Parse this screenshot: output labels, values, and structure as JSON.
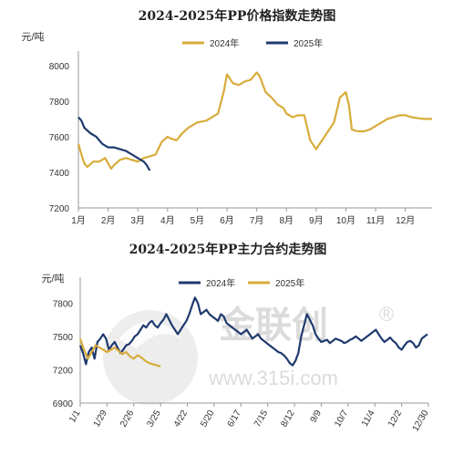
{
  "chart_data": [
    {
      "type": "line",
      "title": "2024-2025年PP价格指数走势图",
      "ylabel": "元/吨",
      "xlabel": "",
      "ylim": [
        7200,
        8050
      ],
      "yticks": [
        7200,
        7400,
        7600,
        7800,
        8000
      ],
      "x_categories": [
        "1月",
        "2月",
        "3月",
        "4月",
        "5月",
        "6月",
        "7月",
        "8月",
        "9月",
        "10月",
        "11月",
        "12月"
      ],
      "legend_position": "top",
      "grid": false,
      "series": [
        {
          "name": "2024年",
          "color": "#d8ac3a",
          "x": [
            1.0,
            1.1,
            1.2,
            1.3,
            1.5,
            1.7,
            1.9,
            2.1,
            2.2,
            2.4,
            2.6,
            2.8,
            3.0,
            3.2,
            3.4,
            3.6,
            3.8,
            4.0,
            4.1,
            4.3,
            4.5,
            4.7,
            5.0,
            5.3,
            5.5,
            5.7,
            5.9,
            6.0,
            6.2,
            6.4,
            6.6,
            6.8,
            7.0,
            7.1,
            7.3,
            7.5,
            7.7,
            7.9,
            8.0,
            8.2,
            8.4,
            8.6,
            8.8,
            9.0,
            9.2,
            9.4,
            9.6,
            9.8,
            10.0,
            10.1,
            10.2,
            10.4,
            10.6,
            10.8,
            11.0,
            11.2,
            11.4,
            11.6,
            11.8,
            12.0,
            12.2,
            12.4,
            12.6,
            12.8,
            12.9
          ],
          "values": [
            7560,
            7500,
            7450,
            7430,
            7460,
            7460,
            7480,
            7420,
            7440,
            7470,
            7480,
            7470,
            7460,
            7480,
            7490,
            7500,
            7570,
            7600,
            7590,
            7580,
            7620,
            7650,
            7680,
            7690,
            7710,
            7730,
            7860,
            7950,
            7900,
            7890,
            7910,
            7920,
            7960,
            7940,
            7850,
            7820,
            7780,
            7760,
            7730,
            7710,
            7720,
            7720,
            7580,
            7530,
            7580,
            7630,
            7680,
            7820,
            7850,
            7780,
            7640,
            7630,
            7630,
            7640,
            7660,
            7680,
            7700,
            7710,
            7720,
            7720,
            7710,
            7705,
            7700,
            7700,
            7700
          ]
        },
        {
          "name": "2025年",
          "color": "#1f3a6e",
          "x": [
            1.0,
            1.1,
            1.2,
            1.4,
            1.6,
            1.8,
            2.0,
            2.2,
            2.4,
            2.6,
            2.8,
            3.0,
            3.1,
            3.2,
            3.3,
            3.4
          ],
          "values": [
            7710,
            7690,
            7650,
            7620,
            7600,
            7560,
            7540,
            7540,
            7530,
            7520,
            7500,
            7480,
            7470,
            7460,
            7440,
            7410
          ]
        }
      ]
    },
    {
      "type": "line",
      "title": "2024-2025年PP主力合约走势图",
      "ylabel": "元/吨",
      "xlabel": "",
      "ylim": [
        6900,
        8000
      ],
      "yticks": [
        6900,
        7200,
        7500,
        7800
      ],
      "x_tick_labels": [
        "1/1",
        "1/29",
        "2/26",
        "3/25",
        "4/22",
        "5/20",
        "6/17",
        "7/15",
        "8/12",
        "9/9",
        "10/7",
        "11/4",
        "12/2",
        "12/30"
      ],
      "legend_position": "top",
      "grid": false,
      "series": [
        {
          "name": "2024年",
          "color": "#1f3a6e",
          "x": [
            0,
            3,
            6,
            9,
            12,
            15,
            18,
            21,
            24,
            27,
            30,
            33,
            36,
            39,
            42,
            45,
            48,
            51,
            54,
            57,
            60,
            63,
            66,
            69,
            72,
            75,
            78,
            81,
            84,
            87,
            90,
            93,
            96,
            99,
            102,
            105,
            108,
            111,
            114,
            117,
            120,
            123,
            126,
            129,
            132,
            135,
            138,
            141,
            144,
            147,
            150,
            153,
            156,
            159,
            162,
            165,
            168,
            171,
            174,
            177,
            180,
            183,
            186,
            189,
            192,
            195,
            198,
            201,
            204,
            207,
            210,
            213,
            216,
            219,
            222,
            225,
            228,
            231,
            234,
            237,
            240,
            243,
            246,
            249,
            252,
            255,
            258,
            261,
            264,
            267,
            270,
            273,
            276,
            279,
            282,
            285,
            288,
            291,
            294,
            297,
            300,
            303,
            306,
            309,
            312,
            315,
            318,
            321,
            324,
            327,
            330,
            333,
            336,
            339,
            342,
            345,
            348,
            351,
            354,
            357,
            360,
            363
          ],
          "values": [
            7420,
            7350,
            7250,
            7360,
            7400,
            7300,
            7450,
            7480,
            7520,
            7480,
            7380,
            7420,
            7450,
            7400,
            7350,
            7380,
            7420,
            7430,
            7460,
            7500,
            7520,
            7560,
            7600,
            7580,
            7620,
            7640,
            7600,
            7580,
            7620,
            7650,
            7700,
            7650,
            7600,
            7560,
            7520,
            7560,
            7600,
            7640,
            7700,
            7780,
            7850,
            7800,
            7700,
            7720,
            7740,
            7700,
            7680,
            7660,
            7640,
            7700,
            7680,
            7620,
            7600,
            7580,
            7560,
            7540,
            7520,
            7540,
            7560,
            7520,
            7480,
            7500,
            7520,
            7480,
            7460,
            7440,
            7420,
            7400,
            7380,
            7360,
            7350,
            7330,
            7300,
            7260,
            7240,
            7280,
            7350,
            7500,
            7600,
            7700,
            7650,
            7600,
            7520,
            7480,
            7450,
            7460,
            7470,
            7440,
            7460,
            7480,
            7470,
            7460,
            7440,
            7450,
            7470,
            7480,
            7500,
            7480,
            7460,
            7480,
            7500,
            7520,
            7540,
            7560,
            7520,
            7480,
            7450,
            7470,
            7490,
            7460,
            7440,
            7400,
            7380,
            7420,
            7450,
            7460,
            7440,
            7400,
            7420,
            7480,
            7500,
            7520
          ]
        },
        {
          "name": "2025年",
          "color": "#d8ac3a",
          "x": [
            0,
            4,
            8,
            12,
            16,
            20,
            24,
            28,
            32,
            36,
            40,
            44,
            48,
            52,
            56,
            60,
            64,
            68,
            72,
            76,
            80,
            84
          ],
          "values": [
            7480,
            7380,
            7300,
            7360,
            7420,
            7400,
            7380,
            7360,
            7380,
            7400,
            7370,
            7340,
            7360,
            7320,
            7300,
            7330,
            7310,
            7280,
            7260,
            7250,
            7240,
            7230
          ]
        }
      ]
    }
  ],
  "watermark": {
    "brand": "金联创",
    "url": "www.315i.com",
    "registered_mark": "®"
  }
}
